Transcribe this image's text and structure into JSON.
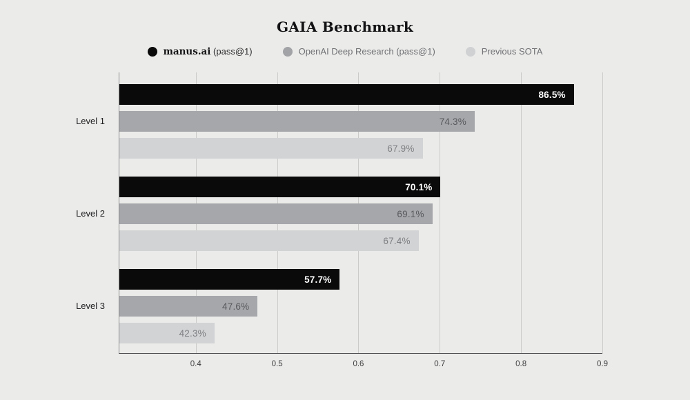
{
  "title": "GAIA Benchmark",
  "legend": [
    {
      "name": "manus-ai",
      "label_primary": "manus.ai",
      "label_secondary": "(pass@1)",
      "dot_color": "#0a0a0b"
    },
    {
      "name": "openai-deep-research",
      "label": "OpenAI Deep Research (pass@1)",
      "dot_color": "#a2a3a6"
    },
    {
      "name": "previous-sota",
      "label": "Previous SOTA",
      "dot_color": "#d0d1d3"
    }
  ],
  "chart_data": {
    "type": "bar",
    "orientation": "horizontal",
    "title": "GAIA Benchmark",
    "categories": [
      "Level 1",
      "Level 2",
      "Level 3"
    ],
    "series": [
      {
        "name": "manus.ai (pass@1)",
        "color": "#0a0a0b",
        "label_color": "#ffffff",
        "label_weight": "700",
        "values": [
          86.5,
          70.1,
          57.7
        ],
        "labels": [
          "86.5%",
          "70.1%",
          "57.7%"
        ]
      },
      {
        "name": "OpenAI Deep Research (pass@1)",
        "color": "#a6a7aa",
        "label_color": "#57585b",
        "label_weight": "400",
        "values": [
          74.3,
          69.1,
          47.6
        ],
        "labels": [
          "74.3%",
          "69.1%",
          "47.6%"
        ]
      },
      {
        "name": "Previous SOTA",
        "color": "#d2d3d4",
        "label_color": "#7e7f83",
        "label_weight": "400",
        "values": [
          67.9,
          67.4,
          42.3
        ],
        "labels": [
          "67.9%",
          "67.4%",
          "42.3%"
        ]
      }
    ],
    "xlabel": "",
    "ylabel": "",
    "x_ticks": [
      "0.4",
      "0.5",
      "0.6",
      "0.7",
      "0.8",
      "0.9"
    ],
    "x_tick_values": [
      0.4,
      0.5,
      0.6,
      0.7,
      0.8,
      0.9
    ],
    "x_range": [
      0.306,
      0.9
    ],
    "grid": true,
    "legend_position": "top"
  },
  "colors": {
    "background": "#ebebe9",
    "gridline": "#cbcbc9",
    "axis_left": "#8a8a8d",
    "axis_bottom": "#505053",
    "tick_label": "#3e3e40",
    "category_label": "#212123"
  }
}
